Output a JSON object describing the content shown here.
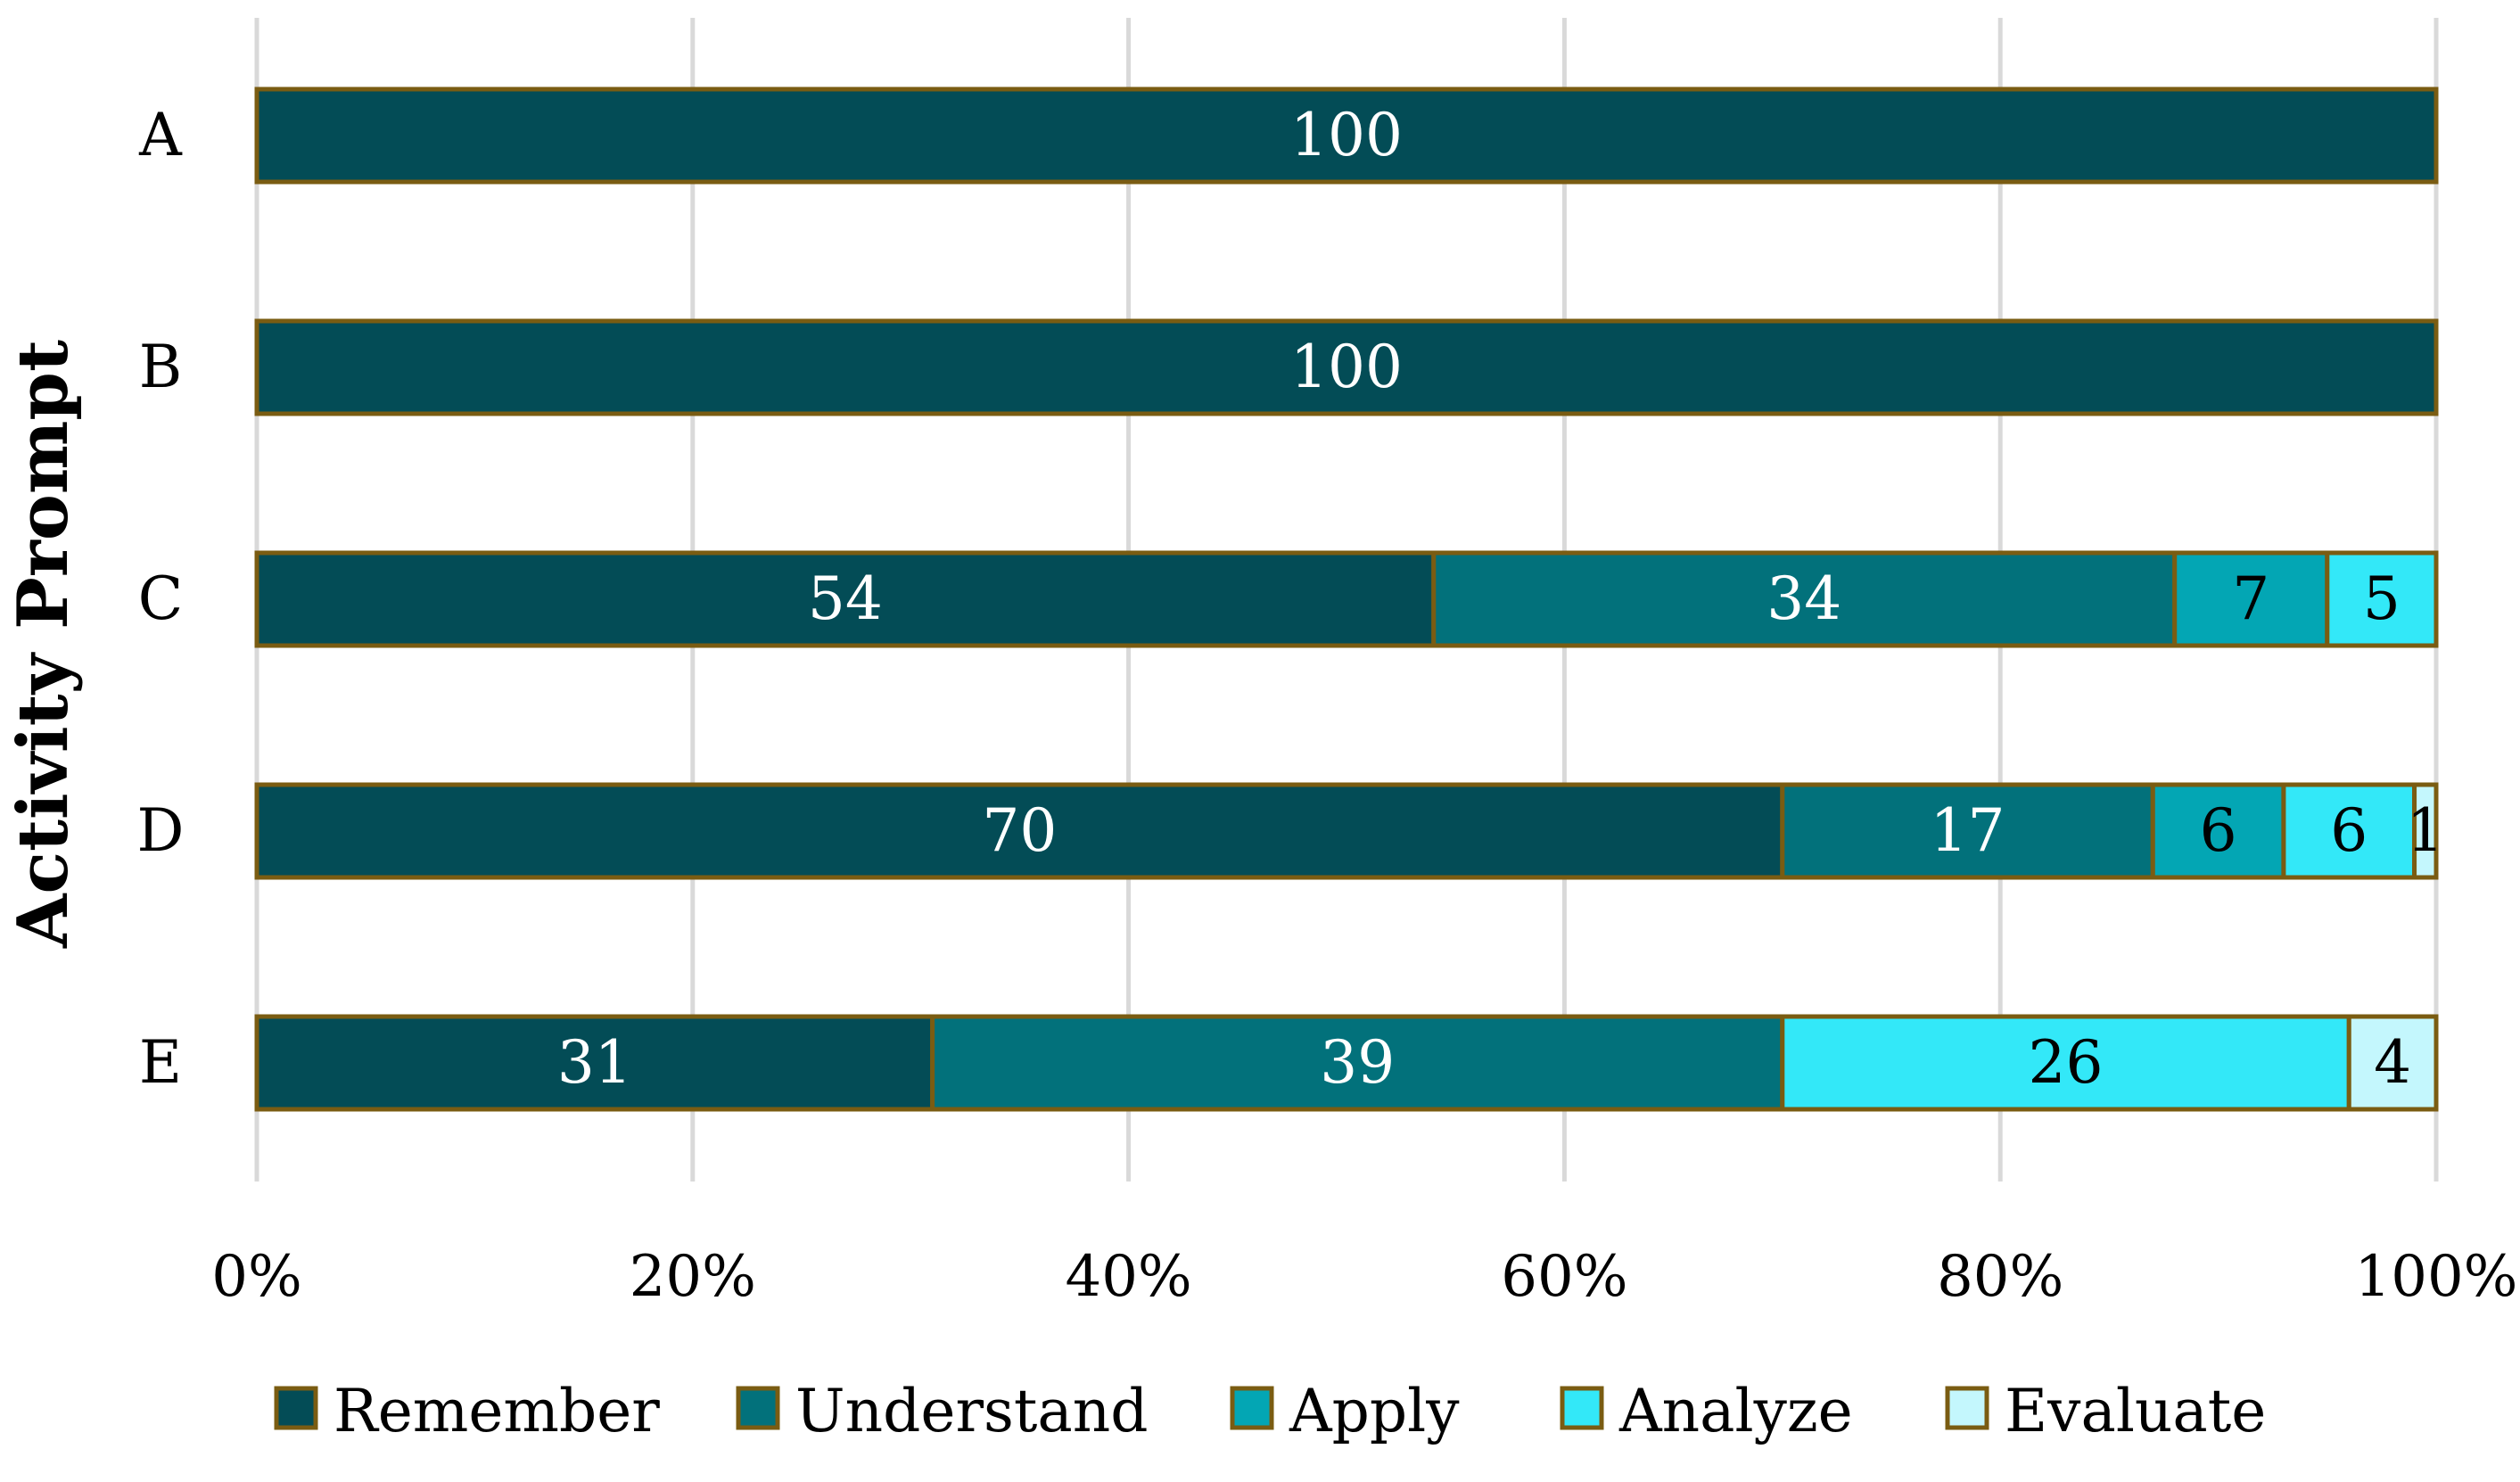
{
  "chart_data": {
    "type": "bar",
    "orientation": "horizontal",
    "stacked": true,
    "title": "",
    "xlabel": "",
    "ylabel": "Activity Prompt",
    "categories": [
      "A",
      "B",
      "C",
      "D",
      "E"
    ],
    "xlim": [
      0,
      100
    ],
    "xticks": [
      0,
      20,
      40,
      60,
      80,
      100
    ],
    "xtick_labels": [
      "0%",
      "20%",
      "40%",
      "60%",
      "80%",
      "100%"
    ],
    "grid": "vertical",
    "legend_position": "bottom",
    "bar_border_color": "#7a5c12",
    "series": [
      {
        "name": "Remember",
        "color": "#034c56",
        "label_color": "#ffffff",
        "values": [
          100,
          100,
          54,
          70,
          31
        ]
      },
      {
        "name": "Understand",
        "color": "#02717b",
        "label_color": "#ffffff",
        "values": [
          0,
          0,
          34,
          17,
          39
        ]
      },
      {
        "name": "Apply",
        "color": "#03a6b4",
        "label_color": "#000000",
        "values": [
          0,
          0,
          7,
          6,
          0
        ]
      },
      {
        "name": "Analyze",
        "color": "#33e8f8",
        "label_color": "#000000",
        "values": [
          0,
          0,
          5,
          6,
          26
        ]
      },
      {
        "name": "Evaluate",
        "color": "#c4f7fd",
        "label_color": "#000000",
        "values": [
          0,
          0,
          0,
          1,
          4
        ]
      }
    ]
  }
}
